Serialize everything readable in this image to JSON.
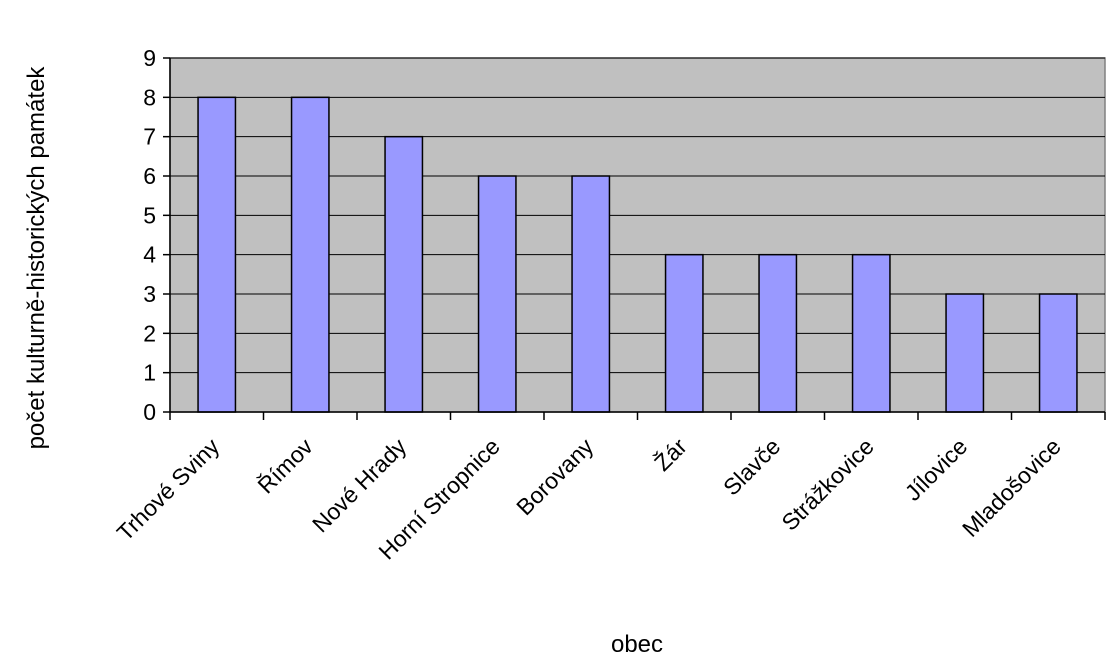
{
  "chart_data": {
    "type": "bar",
    "title": "",
    "xlabel": "obec",
    "ylabel": "počet kulturně-historických památek",
    "categories": [
      "Trhové Sviny",
      "Římov",
      "Nové Hrady",
      "Horní Stropnice",
      "Borovany",
      "Žár",
      "Slavče",
      "Strážkovice",
      "Jílovice",
      "Mladošovice"
    ],
    "values": [
      8,
      8,
      7,
      6,
      6,
      4,
      4,
      4,
      3,
      3
    ],
    "ylim": [
      0,
      9
    ],
    "yticks": [
      "0",
      "1",
      "2",
      "3",
      "4",
      "5",
      "6",
      "7",
      "8",
      "9"
    ],
    "grid": true,
    "legend": "none",
    "colors": {
      "bar": "#9999ff",
      "plot_background": "#c0c0c0",
      "gridline": "#000000"
    }
  }
}
